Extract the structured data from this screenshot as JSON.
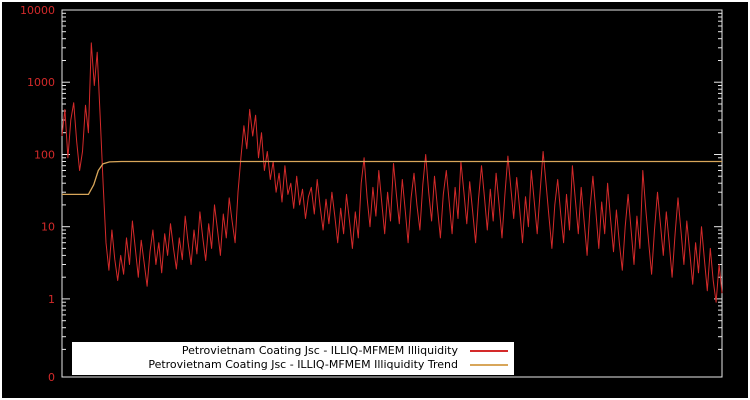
{
  "chart_data": {
    "type": "line",
    "title": "",
    "xlabel": "",
    "ylabel": "",
    "y_scale": "log",
    "ylim": [
      0.083,
      10000
    ],
    "background_color": "#000000",
    "frame_color": "#e8e8e8",
    "tick_label_color": "#d42a2a",
    "grid": false,
    "legend_position": "bottom-center",
    "y_ticks": [
      {
        "label": "10000",
        "value": 10000
      },
      {
        "label": "1000",
        "value": 1000
      },
      {
        "label": "100",
        "value": 100
      },
      {
        "label": "10",
        "value": 10
      },
      {
        "label": "1",
        "value": 1
      },
      {
        "label": "0",
        "value": 0.083
      }
    ],
    "series": [
      {
        "name": "Petrovietnam Coating Jsc - ILLIQ-MFMEM Illiquidity",
        "color": "#d42a2a",
        "values": [
          180,
          420,
          90,
          300,
          520,
          150,
          60,
          110,
          480,
          200,
          3500,
          900,
          2600,
          350,
          40,
          6,
          2.5,
          9,
          3.5,
          1.8,
          4,
          2.2,
          7,
          3,
          12,
          5,
          2,
          6.5,
          3.2,
          1.5,
          4.5,
          9,
          3,
          6,
          2.3,
          8,
          4,
          11,
          5,
          2.6,
          7,
          3.5,
          14,
          6,
          3,
          9,
          4.2,
          16,
          7,
          3.4,
          11,
          5,
          20,
          9,
          4,
          15,
          7,
          25,
          12,
          6,
          30,
          90,
          250,
          120,
          420,
          180,
          350,
          90,
          200,
          60,
          110,
          45,
          80,
          30,
          55,
          22,
          70,
          28,
          40,
          18,
          50,
          20,
          33,
          13,
          26,
          35,
          15,
          45,
          19,
          9,
          24,
          11,
          30,
          14,
          6,
          18,
          8,
          28,
          12,
          5,
          16,
          7,
          40,
          90,
          25,
          10,
          35,
          14,
          60,
          22,
          8,
          30,
          12,
          75,
          28,
          11,
          45,
          17,
          6,
          25,
          55,
          20,
          9,
          38,
          100,
          30,
          12,
          50,
          18,
          7,
          28,
          60,
          22,
          8,
          35,
          13,
          80,
          30,
          11,
          42,
          16,
          6,
          24,
          70,
          26,
          9,
          33,
          12,
          55,
          20,
          7,
          28,
          95,
          35,
          13,
          48,
          18,
          6,
          26,
          10,
          60,
          22,
          8,
          30,
          110,
          40,
          14,
          5,
          20,
          45,
          15,
          6,
          28,
          9,
          70,
          24,
          8,
          35,
          12,
          4,
          18,
          50,
          16,
          5,
          22,
          8,
          40,
          13,
          4.5,
          17,
          6,
          2.5,
          10,
          28,
          9,
          3,
          14,
          5,
          60,
          18,
          6,
          2.2,
          9,
          30,
          11,
          4,
          16,
          6,
          2,
          8,
          25,
          9,
          3,
          12,
          4.5,
          1.6,
          6,
          2.3,
          10,
          3.5,
          1.3,
          5,
          1.8,
          0.9,
          3,
          1.2
        ]
      },
      {
        "name": "Petrovietnam Coating Jsc - ILLIQ-MFMEM Illiquidity Trend",
        "color": "#d8a65a",
        "points": [
          {
            "x": 0.0,
            "y": 28
          },
          {
            "x": 0.04,
            "y": 28
          },
          {
            "x": 0.048,
            "y": 38
          },
          {
            "x": 0.055,
            "y": 60
          },
          {
            "x": 0.062,
            "y": 74
          },
          {
            "x": 0.072,
            "y": 79
          },
          {
            "x": 0.09,
            "y": 80
          },
          {
            "x": 1.0,
            "y": 80
          }
        ]
      }
    ]
  },
  "legend": {
    "items": [
      {
        "label": "Petrovietnam Coating Jsc - ILLIQ-MFMEM Illiquidity"
      },
      {
        "label": "Petrovietnam Coating Jsc - ILLIQ-MFMEM Illiquidity Trend"
      }
    ]
  }
}
